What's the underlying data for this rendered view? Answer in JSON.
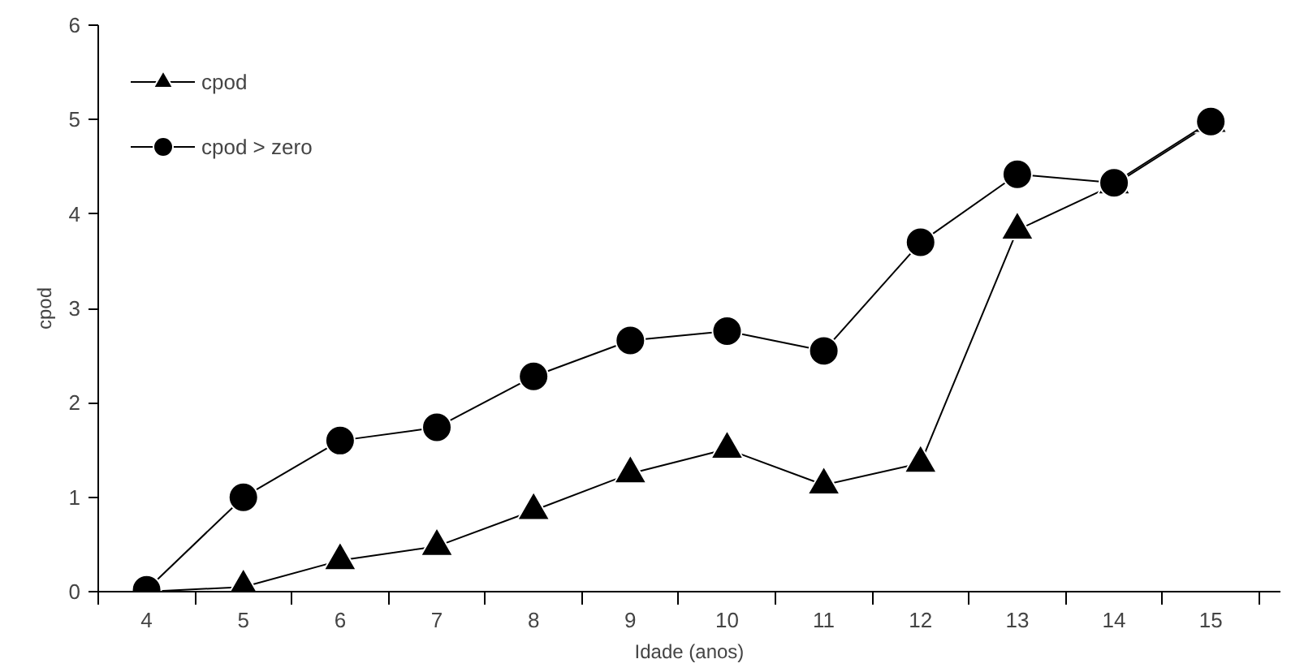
{
  "chart_data": {
    "type": "line",
    "xlabel": "Idade (anos)",
    "ylabel": "cpod",
    "categories": [
      "4",
      "5",
      "6",
      "7",
      "8",
      "9",
      "10",
      "11",
      "12",
      "13",
      "14",
      "15"
    ],
    "series": [
      {
        "name": "cpod",
        "color": "#000000",
        "marker": "triangle",
        "values": [
          0,
          0.05,
          0.33,
          0.48,
          0.86,
          1.25,
          1.51,
          1.13,
          1.36,
          3.83,
          4.31,
          4.96
        ]
      },
      {
        "name": "cpod > zero",
        "color": "#000000",
        "marker": "circle",
        "values": [
          0.02,
          1.0,
          1.6,
          1.74,
          2.28,
          2.66,
          2.76,
          2.55,
          3.7,
          4.42,
          4.33,
          4.98
        ]
      }
    ],
    "ylim": [
      0,
      6
    ],
    "yticks": [
      0,
      1,
      2,
      3,
      4,
      5,
      6
    ],
    "grid": false,
    "legend": "top left",
    "line_style": "solid"
  }
}
